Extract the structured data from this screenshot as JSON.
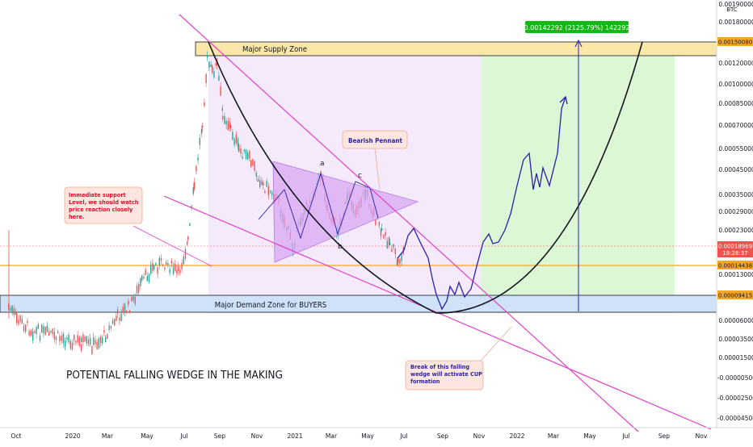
{
  "chart_data": {
    "type": "candlestick",
    "currency": "BTC",
    "y_scale": "log",
    "y_ticks": [
      "0.00190000",
      "0.00180000",
      "0.00120000",
      "0.00100000",
      "0.00085000",
      "0.00070000",
      "0.00055000",
      "0.00045000",
      "0.00035000",
      "0.00029000",
      "0.00023000",
      "0.00013000",
      "0.00006000",
      "0.00003500",
      "0.00001500",
      "-0.00000500",
      "-0.00002500",
      "-0.00004500"
    ],
    "x_ticks": [
      "Oct",
      "2020",
      "Mar",
      "May",
      "Jul",
      "Sep",
      "Nov",
      "2021",
      "Mar",
      "May",
      "Jul",
      "Sep",
      "Nov",
      "2022",
      "Mar",
      "May",
      "Jul",
      "Sep",
      "Nov"
    ],
    "price_badges": [
      {
        "value": "0.00150080",
        "color": "#f5a623",
        "text_color": "#131722"
      },
      {
        "value": "0.00018969",
        "sub": "18:28:37",
        "color": "#ef5350",
        "text_color": "#ffffff"
      },
      {
        "value": "0.00014438",
        "color": "#f5a623",
        "text_color": "#131722"
      },
      {
        "value": "0.00009415",
        "color": "#f5a623",
        "text_color": "#131722"
      }
    ],
    "measure_label": "0.00142292 (2125.79%) 142292",
    "zones": {
      "supply": "Major Supply Zone",
      "demand": "Major Demand Zone for BUYERS"
    },
    "annotations": {
      "support_note": "Immediate support Level, we should watch price reaction closely here.",
      "pennant": "Bearish Pennant",
      "wedge_break": "Break of this falling wedge will activate CUP formation",
      "title": "POTENTIAL FALLING WEDGE IN THE MAKING",
      "point_a": "a",
      "point_b": "b",
      "point_c": "c"
    },
    "colors": {
      "up": "#26a69a",
      "down": "#ef5350",
      "projection": "#2a1fa8",
      "trendline": "#e040c8",
      "support_line": "#f5a623"
    }
  }
}
